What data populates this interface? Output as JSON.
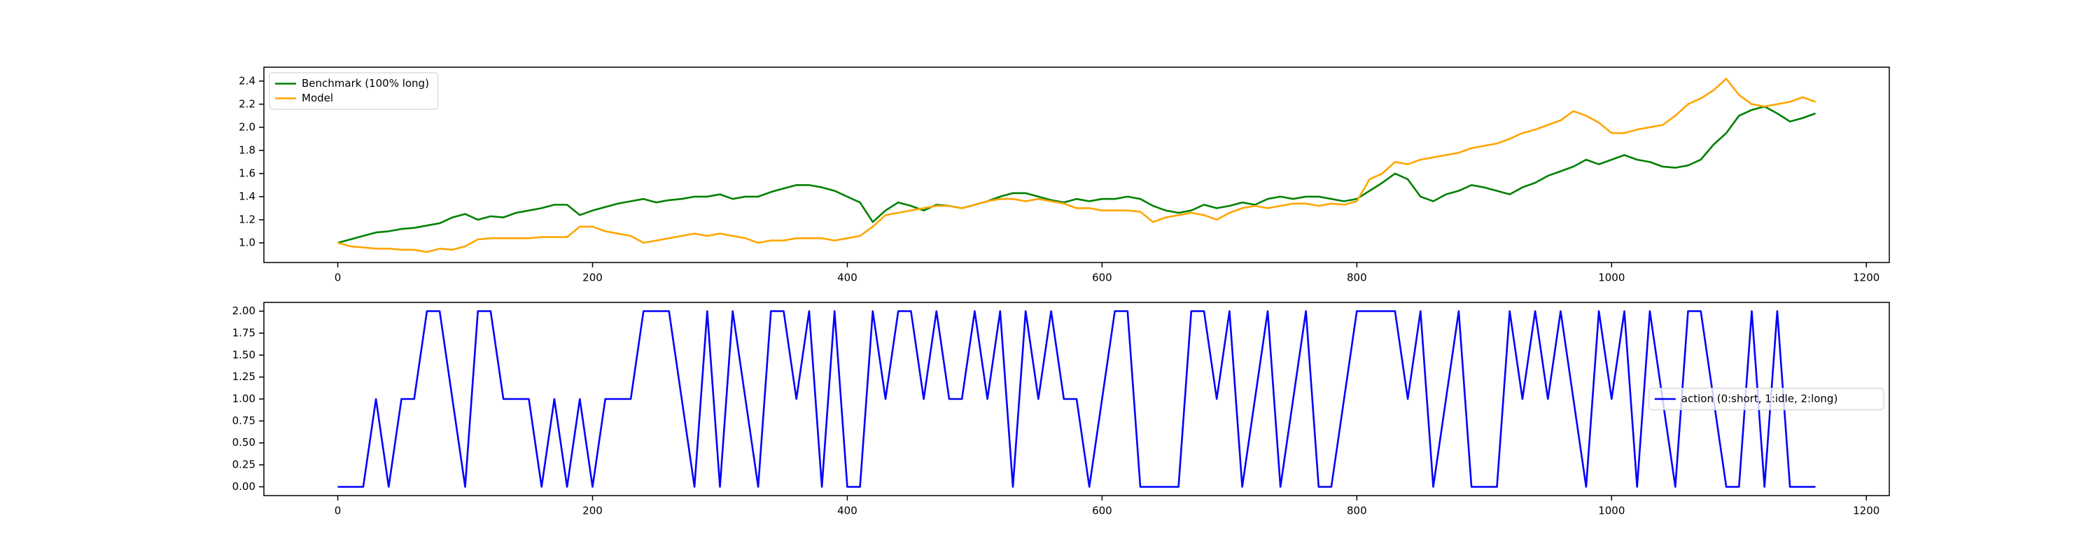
{
  "chart_data": [
    {
      "type": "line",
      "x": [
        0,
        10,
        20,
        30,
        40,
        50,
        60,
        70,
        80,
        90,
        100,
        110,
        120,
        130,
        140,
        150,
        160,
        170,
        180,
        190,
        200,
        210,
        220,
        230,
        240,
        250,
        260,
        270,
        280,
        290,
        300,
        310,
        320,
        330,
        340,
        350,
        360,
        370,
        380,
        390,
        400,
        410,
        420,
        430,
        440,
        450,
        460,
        470,
        480,
        490,
        500,
        510,
        520,
        530,
        540,
        550,
        560,
        570,
        580,
        590,
        600,
        610,
        620,
        630,
        640,
        650,
        660,
        670,
        680,
        690,
        700,
        710,
        720,
        730,
        740,
        750,
        760,
        770,
        780,
        790,
        800,
        810,
        820,
        830,
        840,
        850,
        860,
        870,
        880,
        890,
        900,
        910,
        920,
        930,
        940,
        950,
        960,
        970,
        980,
        990,
        1000,
        1010,
        1020,
        1030,
        1040,
        1050,
        1060,
        1070,
        1080,
        1090,
        1100,
        1110,
        1120,
        1130,
        1140,
        1150,
        1160
      ],
      "series": [
        {
          "name": "Benchmark (100% long)",
          "color": "#008000",
          "values": [
            1.0,
            1.03,
            1.06,
            1.09,
            1.1,
            1.12,
            1.13,
            1.15,
            1.17,
            1.22,
            1.25,
            1.2,
            1.23,
            1.22,
            1.26,
            1.28,
            1.3,
            1.33,
            1.33,
            1.24,
            1.28,
            1.31,
            1.34,
            1.36,
            1.38,
            1.35,
            1.37,
            1.38,
            1.4,
            1.4,
            1.42,
            1.38,
            1.4,
            1.4,
            1.44,
            1.47,
            1.5,
            1.5,
            1.48,
            1.45,
            1.4,
            1.35,
            1.18,
            1.28,
            1.35,
            1.32,
            1.28,
            1.33,
            1.32,
            1.3,
            1.33,
            1.36,
            1.4,
            1.43,
            1.43,
            1.4,
            1.37,
            1.35,
            1.38,
            1.36,
            1.38,
            1.38,
            1.4,
            1.38,
            1.32,
            1.28,
            1.26,
            1.28,
            1.33,
            1.3,
            1.32,
            1.35,
            1.33,
            1.38,
            1.4,
            1.38,
            1.4,
            1.4,
            1.38,
            1.36,
            1.38,
            1.45,
            1.52,
            1.6,
            1.55,
            1.4,
            1.36,
            1.42,
            1.45,
            1.5,
            1.48,
            1.45,
            1.42,
            1.48,
            1.52,
            1.58,
            1.62,
            1.66,
            1.72,
            1.68,
            1.72,
            1.76,
            1.72,
            1.7,
            1.66,
            1.65,
            1.67,
            1.72,
            1.85,
            1.95,
            2.1,
            2.15,
            2.18,
            2.12,
            2.05,
            2.08,
            2.12
          ]
        },
        {
          "name": "Model",
          "color": "#ffa500",
          "values": [
            1.0,
            0.97,
            0.96,
            0.95,
            0.95,
            0.94,
            0.94,
            0.92,
            0.95,
            0.94,
            0.97,
            1.03,
            1.04,
            1.04,
            1.04,
            1.04,
            1.05,
            1.05,
            1.05,
            1.14,
            1.14,
            1.1,
            1.08,
            1.06,
            1.0,
            1.02,
            1.04,
            1.06,
            1.08,
            1.06,
            1.08,
            1.06,
            1.04,
            1.0,
            1.02,
            1.02,
            1.04,
            1.04,
            1.04,
            1.02,
            1.04,
            1.06,
            1.14,
            1.24,
            1.26,
            1.28,
            1.3,
            1.32,
            1.32,
            1.3,
            1.33,
            1.36,
            1.38,
            1.38,
            1.36,
            1.38,
            1.36,
            1.34,
            1.3,
            1.3,
            1.28,
            1.28,
            1.28,
            1.27,
            1.18,
            1.22,
            1.24,
            1.26,
            1.24,
            1.2,
            1.26,
            1.3,
            1.32,
            1.3,
            1.32,
            1.34,
            1.34,
            1.32,
            1.34,
            1.33,
            1.36,
            1.55,
            1.6,
            1.7,
            1.68,
            1.72,
            1.74,
            1.76,
            1.78,
            1.82,
            1.84,
            1.86,
            1.9,
            1.95,
            1.98,
            2.02,
            2.06,
            2.14,
            2.1,
            2.04,
            1.95,
            1.95,
            1.98,
            2.0,
            2.02,
            2.1,
            2.2,
            2.25,
            2.32,
            2.42,
            2.28,
            2.2,
            2.18,
            2.2,
            2.22,
            2.26,
            2.22
          ]
        }
      ],
      "xlim": [
        -58,
        1218
      ],
      "xticks": [
        0,
        200,
        400,
        600,
        800,
        1000,
        1200
      ],
      "ylim": [
        0.83,
        2.52
      ],
      "yticks": [
        {
          "value": 1.0,
          "label": "1.0"
        },
        {
          "value": 1.2,
          "label": "1.2"
        },
        {
          "value": 1.4,
          "label": "1.4"
        },
        {
          "value": 1.6,
          "label": "1.6"
        },
        {
          "value": 1.8,
          "label": "1.8"
        },
        {
          "value": 2.0,
          "label": "2.0"
        },
        {
          "value": 2.2,
          "label": "2.2"
        },
        {
          "value": 2.4,
          "label": "2.4"
        }
      ],
      "legend": "upper left"
    },
    {
      "type": "line",
      "x": [
        0,
        10,
        20,
        30,
        40,
        50,
        60,
        70,
        80,
        90,
        100,
        110,
        120,
        130,
        140,
        150,
        160,
        170,
        180,
        190,
        200,
        210,
        220,
        230,
        240,
        250,
        260,
        270,
        280,
        290,
        300,
        310,
        320,
        330,
        340,
        350,
        360,
        370,
        380,
        390,
        400,
        410,
        420,
        430,
        440,
        450,
        460,
        470,
        480,
        490,
        500,
        510,
        520,
        530,
        540,
        550,
        560,
        570,
        580,
        590,
        600,
        610,
        620,
        630,
        640,
        650,
        660,
        670,
        680,
        690,
        700,
        710,
        720,
        730,
        740,
        750,
        760,
        770,
        780,
        790,
        800,
        810,
        820,
        830,
        840,
        850,
        860,
        870,
        880,
        890,
        900,
        910,
        920,
        930,
        940,
        950,
        960,
        970,
        980,
        990,
        1000,
        1010,
        1020,
        1030,
        1040,
        1050,
        1060,
        1070,
        1080,
        1090,
        1100,
        1110,
        1120,
        1130,
        1140,
        1150,
        1160
      ],
      "series": [
        {
          "name": "action (0:short, 1:idle, 2:long)",
          "color": "#0000ff",
          "values": [
            0,
            0,
            0,
            1,
            0,
            1,
            1,
            2,
            2,
            1,
            0,
            2,
            2,
            1,
            1,
            1,
            0,
            1,
            0,
            1,
            0,
            1,
            1,
            1,
            2,
            2,
            2,
            1,
            0,
            2,
            0,
            2,
            1,
            0,
            2,
            2,
            1,
            2,
            0,
            2,
            0,
            0,
            2,
            1,
            2,
            2,
            1,
            2,
            1,
            1,
            2,
            1,
            2,
            0,
            2,
            1,
            2,
            1,
            1,
            0,
            1,
            2,
            2,
            0,
            0,
            0,
            0,
            2,
            2,
            1,
            2,
            0,
            1,
            2,
            0,
            1,
            2,
            0,
            0,
            1,
            2,
            2,
            2,
            2,
            1,
            2,
            0,
            1,
            2,
            0,
            0,
            0,
            2,
            1,
            2,
            1,
            2,
            1,
            0,
            2,
            1,
            2,
            0,
            2,
            1,
            0,
            2,
            2,
            1,
            0,
            0,
            2,
            0,
            2,
            0,
            0,
            0
          ]
        }
      ],
      "xlim": [
        -58,
        1218
      ],
      "xticks": [
        0,
        200,
        400,
        600,
        800,
        1000,
        1200
      ],
      "ylim": [
        -0.1,
        2.1
      ],
      "yticks": [
        {
          "value": 0,
          "label": "0.00"
        },
        {
          "value": 0.25,
          "label": "0.25"
        },
        {
          "value": 0.5,
          "label": "0.50"
        },
        {
          "value": 0.75,
          "label": "0.75"
        },
        {
          "value": 1.0,
          "label": "1.00"
        },
        {
          "value": 1.25,
          "label": "1.25"
        },
        {
          "value": 1.5,
          "label": "1.50"
        },
        {
          "value": 1.75,
          "label": "1.75"
        },
        {
          "value": 2.0,
          "label": "2.00"
        }
      ],
      "legend": "center right"
    }
  ]
}
